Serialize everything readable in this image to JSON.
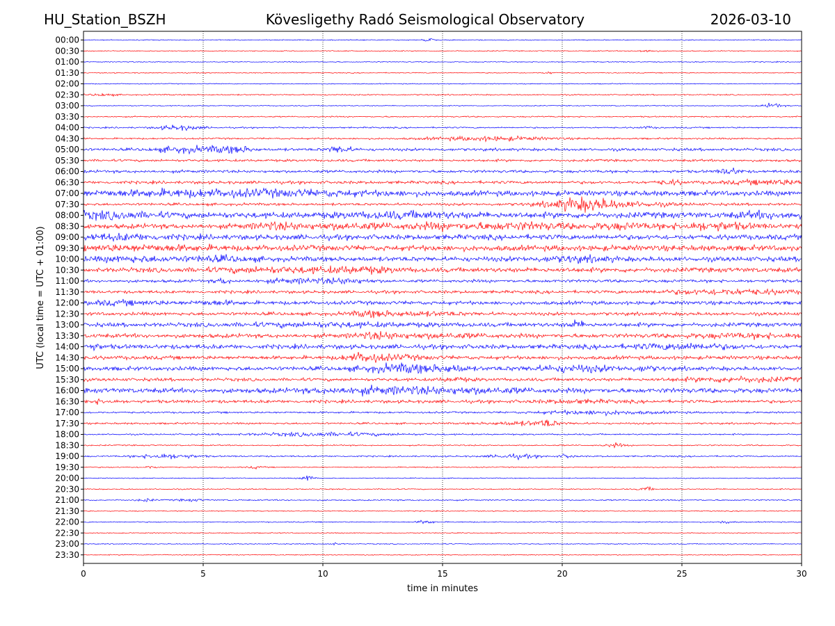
{
  "header": {
    "station": "HU_Station_BSZH",
    "observatory": "Kövesligethy Radó Seismological Observatory",
    "date": "2026-03-10"
  },
  "chart_data": {
    "type": "line",
    "title": "Kövesligethy Radó Seismological Observatory",
    "xlabel": "time in minutes",
    "ylabel": "UTC (local time = UTC + 01:00)",
    "xlim": [
      0,
      30
    ],
    "x_ticks": [
      0,
      5,
      10,
      15,
      20,
      25,
      30
    ],
    "grid": "vertical dotted lines at 5, 10, 15, 20, 25",
    "trace_colors": [
      "#0000ff",
      "#ff0000"
    ],
    "traces": [
      {
        "label": "00:00",
        "noise": 0.5,
        "events": [
          [
            14.4,
            2,
            0.25
          ]
        ]
      },
      {
        "label": "00:30",
        "noise": 0.5,
        "events": [
          [
            23.5,
            1.3,
            0.4
          ]
        ]
      },
      {
        "label": "01:00",
        "noise": 0.5,
        "events": []
      },
      {
        "label": "01:30",
        "noise": 0.5,
        "events": [
          [
            19.5,
            1,
            0.3
          ]
        ]
      },
      {
        "label": "02:00",
        "noise": 0.5,
        "events": []
      },
      {
        "label": "02:30",
        "noise": 0.7,
        "events": [
          [
            0.8,
            1.2,
            0.5
          ]
        ]
      },
      {
        "label": "03:00",
        "noise": 0.5,
        "events": [
          [
            28.8,
            2.5,
            0.4
          ]
        ]
      },
      {
        "label": "03:30",
        "noise": 0.7,
        "events": []
      },
      {
        "label": "04:00",
        "noise": 0.8,
        "events": [
          [
            4,
            2.5,
            0.9
          ],
          [
            23.5,
            1.2,
            0.3
          ]
        ]
      },
      {
        "label": "04:30",
        "noise": 0.9,
        "events": [
          [
            17,
            2,
            2.5
          ]
        ]
      },
      {
        "label": "05:00",
        "noise": 1.5,
        "events": [
          [
            4,
            2.5,
            1
          ],
          [
            5.5,
            2.5,
            0.8
          ],
          [
            6.5,
            2.5,
            0.6
          ],
          [
            10.7,
            3.5,
            0.5
          ]
        ]
      },
      {
        "label": "05:30",
        "noise": 1.3,
        "events": []
      },
      {
        "label": "06:00",
        "noise": 1.5,
        "events": [
          [
            27,
            3.5,
            0.4
          ]
        ]
      },
      {
        "label": "06:30",
        "noise": 1.6,
        "events": [
          [
            24.5,
            2,
            0.5
          ],
          [
            29,
            2,
            2
          ]
        ]
      },
      {
        "label": "07:00",
        "noise": 2.8,
        "events": [
          [
            4,
            1.8,
            4
          ],
          [
            9,
            1.5,
            4
          ]
        ]
      },
      {
        "label": "07:30",
        "noise": 1.4,
        "events": [
          [
            20.8,
            5,
            1.3
          ],
          [
            22,
            2.5,
            2.5
          ]
        ]
      },
      {
        "label": "08:00",
        "noise": 3.2,
        "events": [
          [
            0.8,
            2.2,
            2
          ],
          [
            13.5,
            1.8,
            2.5
          ],
          [
            28.5,
            2,
            1.2
          ]
        ]
      },
      {
        "label": "08:30",
        "noise": 2.6,
        "events": [
          [
            8,
            2.5,
            1
          ],
          [
            11,
            2,
            2
          ],
          [
            15,
            2,
            2
          ],
          [
            18.5,
            2.5,
            2
          ],
          [
            22.5,
            2,
            1.5
          ],
          [
            26.3,
            3.2,
            1.5
          ]
        ]
      },
      {
        "label": "09:00",
        "noise": 2.8,
        "events": [
          [
            1.5,
            1.8,
            2
          ]
        ]
      },
      {
        "label": "09:30",
        "noise": 3,
        "events": [
          [
            2.5,
            1.5,
            3
          ]
        ]
      },
      {
        "label": "10:00",
        "noise": 2.6,
        "events": [
          [
            2,
            1.8,
            1.5
          ],
          [
            5.5,
            1.8,
            1.5
          ],
          [
            20.5,
            2,
            1.5
          ]
        ]
      },
      {
        "label": "10:30",
        "noise": 2.5,
        "events": [
          [
            8,
            1.8,
            2.5
          ],
          [
            11.5,
            2.2,
            1.5
          ]
        ]
      },
      {
        "label": "11:00",
        "noise": 1.6,
        "events": [
          [
            5.8,
            2.5,
            0.3
          ],
          [
            9,
            1.8,
            1.5
          ],
          [
            11,
            2,
            1
          ]
        ]
      },
      {
        "label": "11:30",
        "noise": 1.6,
        "events": [
          [
            27,
            2.2,
            3
          ]
        ]
      },
      {
        "label": "12:00",
        "noise": 2,
        "events": [
          [
            1.5,
            1.5,
            2
          ],
          [
            5.5,
            1.5,
            1
          ]
        ]
      },
      {
        "label": "12:30",
        "noise": 1.8,
        "events": [
          [
            12,
            2.2,
            0.8
          ],
          [
            14,
            1.5,
            2
          ]
        ]
      },
      {
        "label": "13:00",
        "noise": 2.2,
        "events": [
          [
            10.5,
            1.4,
            3.5
          ],
          [
            20.6,
            3,
            0.4
          ]
        ]
      },
      {
        "label": "13:30",
        "noise": 2.2,
        "events": [
          [
            12.3,
            2.5,
            1
          ],
          [
            15,
            1.5,
            2
          ],
          [
            28,
            1.5,
            3
          ]
        ]
      },
      {
        "label": "14:00",
        "noise": 2.4,
        "events": [
          [
            0.3,
            2,
            0.5
          ],
          [
            25,
            2.2,
            2
          ]
        ]
      },
      {
        "label": "14:30",
        "noise": 2,
        "events": [
          [
            11.7,
            3.5,
            0.8
          ],
          [
            13,
            1.5,
            1.5
          ]
        ]
      },
      {
        "label": "15:00",
        "noise": 2.2,
        "events": [
          [
            13.5,
            3.8,
            1.8
          ],
          [
            15.5,
            2.2,
            0.5
          ],
          [
            20.5,
            2.5,
            2
          ],
          [
            23.5,
            1.8,
            0.5
          ]
        ]
      },
      {
        "label": "15:30",
        "noise": 1.7,
        "events": [
          [
            15.5,
            1.6,
            0.6
          ],
          [
            27.5,
            2,
            2.5
          ]
        ]
      },
      {
        "label": "16:00",
        "noise": 2.6,
        "events": [
          [
            11.5,
            1.8,
            2
          ],
          [
            14,
            1.8,
            2
          ],
          [
            16.8,
            1.6,
            2
          ]
        ]
      },
      {
        "label": "16:30",
        "noise": 1.7,
        "events": [
          [
            0.7,
            1.6,
            0.5
          ],
          [
            20.5,
            1.3,
            1.5
          ]
        ]
      },
      {
        "label": "17:00",
        "noise": 1,
        "events": [
          [
            21.5,
            1.8,
            2.5
          ]
        ]
      },
      {
        "label": "17:30",
        "noise": 1,
        "events": [
          [
            18.5,
            2,
            1.5
          ],
          [
            19.4,
            3,
            0.3
          ]
        ]
      },
      {
        "label": "18:00",
        "noise": 0.8,
        "events": [
          [
            10,
            1.8,
            3
          ]
        ]
      },
      {
        "label": "18:30",
        "noise": 0.7,
        "events": [
          [
            22.2,
            2,
            0.4
          ]
        ]
      },
      {
        "label": "19:00",
        "noise": 0.8,
        "events": [
          [
            3.5,
            2.5,
            1.2
          ],
          [
            18,
            2,
            1
          ],
          [
            20.2,
            2,
            0.3
          ]
        ]
      },
      {
        "label": "19:30",
        "noise": 0.6,
        "events": [
          [
            2.8,
            1.2,
            0.3
          ],
          [
            7.2,
            1.2,
            0.3
          ]
        ]
      },
      {
        "label": "20:00",
        "noise": 0.5,
        "events": [
          [
            9.4,
            3,
            0.3
          ]
        ]
      },
      {
        "label": "20:30",
        "noise": 0.6,
        "events": [
          [
            23.5,
            2,
            0.3
          ]
        ]
      },
      {
        "label": "21:00",
        "noise": 0.7,
        "events": [
          [
            2.6,
            1.5,
            0.3
          ],
          [
            4.5,
            1,
            0.6
          ]
        ]
      },
      {
        "label": "21:30",
        "noise": 0.5,
        "events": []
      },
      {
        "label": "22:00",
        "noise": 0.6,
        "events": [
          [
            14.3,
            2.2,
            0.3
          ],
          [
            26.8,
            1.5,
            0.3
          ]
        ]
      },
      {
        "label": "22:30",
        "noise": 0.5,
        "events": []
      },
      {
        "label": "23:00",
        "noise": 0.5,
        "events": [
          [
            10.5,
            1,
            0.3
          ]
        ]
      },
      {
        "label": "23:30",
        "noise": 0.5,
        "events": []
      }
    ]
  }
}
